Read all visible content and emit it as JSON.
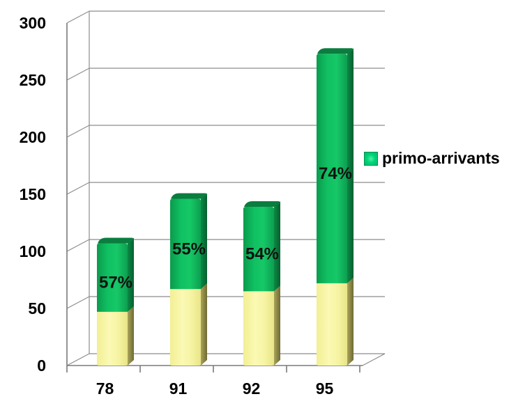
{
  "chart_data": {
    "type": "bar",
    "stacked": true,
    "three_d": true,
    "categories": [
      "78",
      "91",
      "92",
      "95"
    ],
    "series": [
      {
        "values": [
          47,
          67,
          65,
          72
        ],
        "color": "#f4f29a"
      },
      {
        "name": "primo-arrivants",
        "values": [
          60,
          79,
          74,
          201
        ],
        "color": "#12b85e"
      }
    ],
    "data_labels": [
      "57%",
      "55%",
      "54%",
      "74%"
    ],
    "y_ticks": [
      "0",
      "50",
      "100",
      "150",
      "200",
      "250",
      "300"
    ],
    "ylim": [
      0,
      300
    ],
    "grid": true,
    "legend_position": "right"
  }
}
